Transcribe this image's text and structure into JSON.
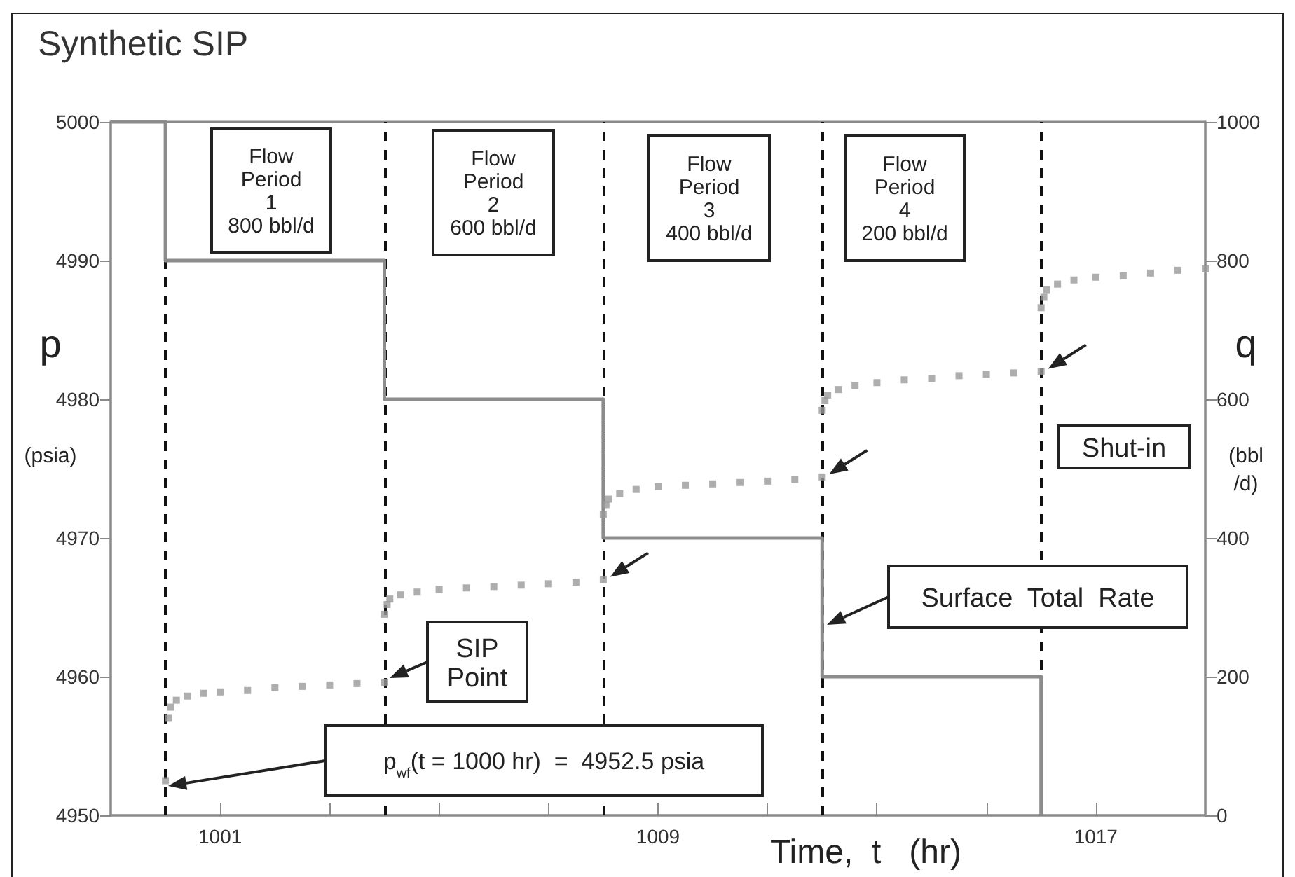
{
  "chart_data": {
    "type": "scatter",
    "title": "Synthetic SIP",
    "xlabel": "Time,  t   (hr)",
    "ylabel": "p\n(psia)",
    "y2label": "q\n(bbl\n/d)",
    "xlim": [
      999,
      1019
    ],
    "xticks": [
      {
        "value": 1001,
        "label": "1001"
      },
      {
        "value": 1003,
        "label": null
      },
      {
        "value": 1005,
        "label": null
      },
      {
        "value": 1007,
        "label": null
      },
      {
        "value": 1009,
        "label": "1009"
      },
      {
        "value": 1011,
        "label": null
      },
      {
        "value": 1013,
        "label": null
      },
      {
        "value": 1015,
        "label": null
      },
      {
        "value": 1017,
        "label": "1017"
      }
    ],
    "ylim": [
      4950,
      5000
    ],
    "yticks": [
      4950,
      4960,
      4970,
      4980,
      4990,
      5000
    ],
    "y2lim": [
      0,
      1000
    ],
    "y2ticks": [
      0,
      200,
      400,
      600,
      800,
      1000
    ],
    "grid": false,
    "series": [
      {
        "type": "step",
        "axis": "y2",
        "color": "#8c8c8c",
        "marker": "none",
        "x": [
          999,
          1000,
          1004,
          1008,
          1012,
          1016
        ],
        "values": [
          1000,
          800,
          600,
          400,
          200,
          0
        ]
      },
      {
        "color": "#9a9a9a",
        "marker": "square",
        "x": [
          1000,
          1000.05,
          1000.1,
          1000.2,
          1000.4,
          1000.7,
          1001,
          1001.5,
          1002,
          1002.5,
          1003,
          1003.5,
          1004
        ],
        "values": [
          4952.5,
          4957,
          4957.8,
          4958.3,
          4958.6,
          4958.8,
          4958.9,
          4959,
          4959.2,
          4959.3,
          4959.4,
          4959.5,
          4959.6
        ]
      },
      {
        "color": "#9a9a9a",
        "marker": "square",
        "x": [
          1004,
          1004.05,
          1004.1,
          1004.3,
          1004.6,
          1005,
          1005.5,
          1006,
          1006.5,
          1007,
          1007.5,
          1008
        ],
        "values": [
          4964.5,
          4965.2,
          4965.6,
          4965.9,
          4966.1,
          4966.3,
          4966.4,
          4966.5,
          4966.6,
          4966.7,
          4966.8,
          4967
        ]
      },
      {
        "color": "#9a9a9a",
        "marker": "square",
        "x": [
          1008,
          1008.05,
          1008.1,
          1008.3,
          1008.6,
          1009,
          1009.5,
          1010,
          1010.5,
          1011,
          1011.5,
          1012
        ],
        "values": [
          4971.7,
          4972.4,
          4972.8,
          4973.2,
          4973.5,
          4973.7,
          4973.8,
          4973.9,
          4974,
          4974.1,
          4974.2,
          4974.4
        ]
      },
      {
        "color": "#9a9a9a",
        "marker": "square",
        "x": [
          1012,
          1012.05,
          1012.1,
          1012.3,
          1012.6,
          1013,
          1013.5,
          1014,
          1014.5,
          1015,
          1015.5,
          1016
        ],
        "values": [
          4979.2,
          4979.9,
          4980.3,
          4980.7,
          4981,
          4981.2,
          4981.4,
          4981.5,
          4981.7,
          4981.8,
          4981.9,
          4982
        ]
      },
      {
        "color": "#9a9a9a",
        "marker": "square",
        "x": [
          1016,
          1016.05,
          1016.1,
          1016.3,
          1016.6,
          1017,
          1017.5,
          1018,
          1018.5,
          1019
        ],
        "values": [
          4986.6,
          4987.4,
          4987.9,
          4988.3,
          4988.6,
          4988.8,
          4988.9,
          4989.1,
          4989.3,
          4989.4
        ]
      }
    ],
    "ref_lines": [
      {
        "axis": "x",
        "value": 1000,
        "color": "#111111",
        "line_style": "dashed"
      },
      {
        "axis": "x",
        "value": 1004,
        "color": "#111111",
        "line_style": "dashed"
      },
      {
        "axis": "x",
        "value": 1008,
        "color": "#111111",
        "line_style": "dashed"
      },
      {
        "axis": "x",
        "value": 1012,
        "color": "#111111",
        "line_style": "dashed"
      },
      {
        "axis": "x",
        "value": 1016,
        "color": "#111111",
        "line_style": "dashed"
      }
    ],
    "annotations": [
      "Flow\nPeriod\n1\n800 bbl/d",
      "Flow\nPeriod\n2\n600 bbl/d",
      "Flow\nPeriod\n3\n400 bbl/d",
      "Flow\nPeriod\n4\n200 bbl/d",
      "Shut-in",
      "Surface  Total  Rate",
      "SIP\nPoint",
      "p$_{wf}$(t = 1000 hr)  =  4952.5 psia"
    ]
  }
}
